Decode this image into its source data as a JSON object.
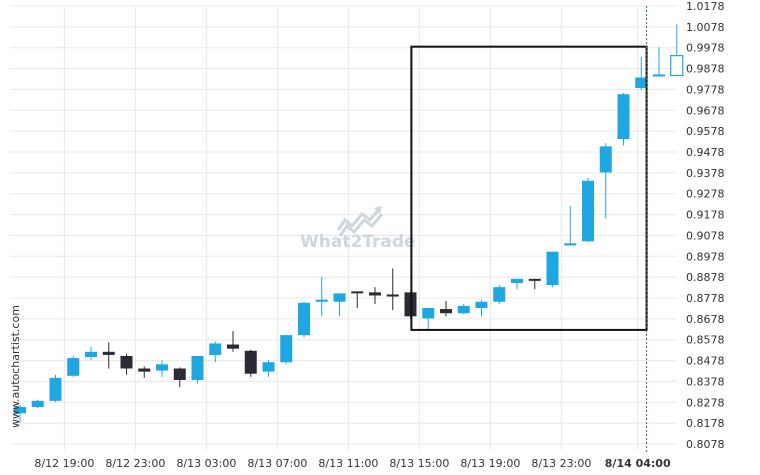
{
  "colors": {
    "bull": "#1fa7e1",
    "bear": "#2b2b36",
    "grid": "#e8e8e8",
    "box": "#111111",
    "vline": "#2e7d32",
    "watermark": "#cfd6dc"
  },
  "side_text": "www.autochartist.com",
  "watermark": {
    "text": "What2Trade",
    "icon": "chart-arrow-icon"
  },
  "chart_data": {
    "type": "candlestick",
    "title": "",
    "xlabel": "",
    "ylabel": "",
    "ylim": [
      0.8028,
      1.0178
    ],
    "y_ticks": [
      1.0178,
      1.0078,
      0.9978,
      0.9878,
      0.9778,
      0.9678,
      0.9578,
      0.9478,
      0.9378,
      0.9278,
      0.9178,
      0.9078,
      0.8978,
      0.8878,
      0.8778,
      0.8678,
      0.8578,
      0.8478,
      0.8378,
      0.8278,
      0.8178,
      0.8078
    ],
    "x_ticks": [
      {
        "index": 2.5,
        "label": "8/12 19:00",
        "bold": false
      },
      {
        "index": 6.5,
        "label": "8/12 23:00",
        "bold": false
      },
      {
        "index": 10.5,
        "label": "8/13 03:00",
        "bold": false
      },
      {
        "index": 14.5,
        "label": "8/13 07:00",
        "bold": false
      },
      {
        "index": 18.5,
        "label": "8/13 11:00",
        "bold": false
      },
      {
        "index": 22.5,
        "label": "8/13 15:00",
        "bold": false
      },
      {
        "index": 26.5,
        "label": "8/13 19:00",
        "bold": false
      },
      {
        "index": 30.5,
        "label": "8/13 23:00",
        "bold": false
      },
      {
        "index": 34.8,
        "label": "8/14 04:00",
        "bold": true
      }
    ],
    "candles": [
      {
        "o": 0.8225,
        "h": 0.8265,
        "l": 0.818,
        "c": 0.8255
      },
      {
        "o": 0.8255,
        "h": 0.829,
        "l": 0.825,
        "c": 0.8285
      },
      {
        "o": 0.8285,
        "h": 0.841,
        "l": 0.828,
        "c": 0.8395
      },
      {
        "o": 0.8405,
        "h": 0.85,
        "l": 0.84,
        "c": 0.849
      },
      {
        "o": 0.8495,
        "h": 0.8545,
        "l": 0.848,
        "c": 0.852
      },
      {
        "o": 0.852,
        "h": 0.8565,
        "l": 0.844,
        "c": 0.8505
      },
      {
        "o": 0.85,
        "h": 0.851,
        "l": 0.841,
        "c": 0.844
      },
      {
        "o": 0.844,
        "h": 0.845,
        "l": 0.8395,
        "c": 0.8425
      },
      {
        "o": 0.843,
        "h": 0.848,
        "l": 0.84,
        "c": 0.846
      },
      {
        "o": 0.844,
        "h": 0.8445,
        "l": 0.835,
        "c": 0.8385
      },
      {
        "o": 0.8385,
        "h": 0.85,
        "l": 0.837,
        "c": 0.85
      },
      {
        "o": 0.8505,
        "h": 0.857,
        "l": 0.847,
        "c": 0.856
      },
      {
        "o": 0.8555,
        "h": 0.862,
        "l": 0.852,
        "c": 0.8535
      },
      {
        "o": 0.8525,
        "h": 0.853,
        "l": 0.84,
        "c": 0.8415
      },
      {
        "o": 0.8425,
        "h": 0.848,
        "l": 0.84,
        "c": 0.847
      },
      {
        "o": 0.847,
        "h": 0.86,
        "l": 0.846,
        "c": 0.86
      },
      {
        "o": 0.86,
        "h": 0.876,
        "l": 0.859,
        "c": 0.8755
      },
      {
        "o": 0.876,
        "h": 0.888,
        "l": 0.869,
        "c": 0.877
      },
      {
        "o": 0.876,
        "h": 0.88,
        "l": 0.869,
        "c": 0.88
      },
      {
        "o": 0.8805,
        "h": 0.881,
        "l": 0.873,
        "c": 0.88
      },
      {
        "o": 0.8805,
        "h": 0.883,
        "l": 0.875,
        "c": 0.879
      },
      {
        "o": 0.8795,
        "h": 0.892,
        "l": 0.872,
        "c": 0.8785
      },
      {
        "o": 0.8805,
        "h": 0.881,
        "l": 0.868,
        "c": 0.869
      },
      {
        "o": 0.868,
        "h": 0.873,
        "l": 0.862,
        "c": 0.873
      },
      {
        "o": 0.8725,
        "h": 0.8765,
        "l": 0.869,
        "c": 0.8705
      },
      {
        "o": 0.8705,
        "h": 0.875,
        "l": 0.87,
        "c": 0.874
      },
      {
        "o": 0.873,
        "h": 0.877,
        "l": 0.869,
        "c": 0.876
      },
      {
        "o": 0.876,
        "h": 0.884,
        "l": 0.875,
        "c": 0.883
      },
      {
        "o": 0.885,
        "h": 0.887,
        "l": 0.882,
        "c": 0.887
      },
      {
        "o": 0.8865,
        "h": 0.887,
        "l": 0.882,
        "c": 0.886
      },
      {
        "o": 0.884,
        "h": 0.9,
        "l": 0.883,
        "c": 0.9
      },
      {
        "o": 0.903,
        "h": 0.922,
        "l": 0.903,
        "c": 0.904
      },
      {
        "o": 0.905,
        "h": 0.9355,
        "l": 0.9045,
        "c": 0.934
      },
      {
        "o": 0.938,
        "h": 0.952,
        "l": 0.916,
        "c": 0.9505
      },
      {
        "o": 0.954,
        "h": 0.976,
        "l": 0.951,
        "c": 0.9755
      },
      {
        "o": 0.9785,
        "h": 0.9935,
        "l": 0.9775,
        "c": 0.9835
      },
      {
        "o": 0.9845,
        "h": 0.998,
        "l": 0.984,
        "c": 0.9845
      },
      {
        "o": 0.9845,
        "h": 1.009,
        "l": 0.984,
        "c": 0.994
      }
    ],
    "pattern_box": {
      "start_index": 22.05,
      "end_index": 35.3,
      "ymin": 0.8625,
      "ymax": 0.9983
    },
    "marker_index": 35.3
  }
}
